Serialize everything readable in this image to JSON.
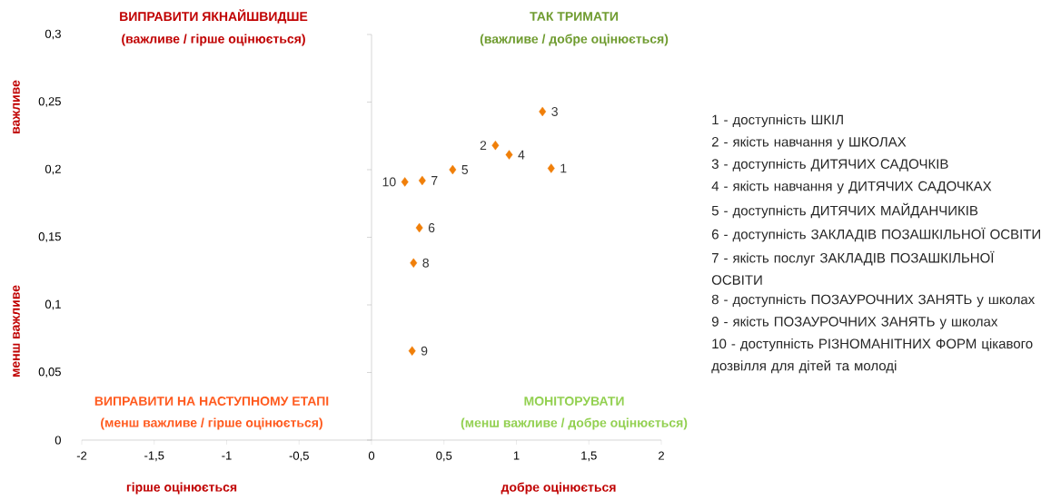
{
  "chart_data": {
    "type": "scatter",
    "marker": "diamond",
    "color": "#f07f09",
    "x": [
      1.24,
      0.855,
      1.18,
      0.95,
      0.56,
      0.33,
      0.35,
      0.29,
      0.28,
      0.23
    ],
    "values": [
      0.201,
      0.218,
      0.243,
      0.211,
      0.2,
      0.157,
      0.192,
      0.131,
      0.066,
      0.191
    ],
    "xlim": [
      -2,
      2
    ],
    "ylim": [
      0,
      0.3
    ],
    "xticks": [
      -2,
      {
        "value": -1.5,
        "label": "-1,5"
      },
      -1,
      {
        "value": -0.5,
        "label": "-0,5"
      },
      0,
      {
        "value": 0.5,
        "label": "0,5"
      },
      1,
      {
        "value": 1.5,
        "label": "1,5"
      },
      2
    ],
    "yticks": [
      0,
      {
        "value": 0.05,
        "label": "0,05"
      },
      {
        "value": 0.1,
        "label": "0,1"
      },
      {
        "value": 0.15,
        "label": "0,15"
      },
      {
        "value": 0.2,
        "label": "0,2"
      },
      {
        "value": 0.25,
        "label": "0,25"
      },
      {
        "value": 0.3,
        "label": "0,3"
      }
    ],
    "annotations": [
      "ВИПРАВИТИ ЯКНАЙШВИДШЕ",
      "(важливе / гірше оцінюється)",
      "ТАК ТРИМАТИ",
      "(важливе / добре оцінюється)",
      "ВИПРАВИТИ НА НАСТУПНОМУ ЕТАПІ",
      "(менш важливе / гірше оцінюється)",
      "МОНІТОРУВАТИ",
      "(менш важливе / добре оцінюється)",
      "гірше оцінюється",
      "добре оцінюється",
      "важливе",
      "менш важливе",
      "1 - доступність ШКІЛ",
      "2 - якість навчання у ШКОЛАХ",
      "3 - доступність ДИТЯЧИХ САДОЧКІВ",
      "4 - якість навчання у ДИТЯЧИХ САДОЧКАХ",
      "5 - доступність ДИТЯЧИХ МАЙДАНЧИКІВ",
      "6 - доступність ЗАКЛАДІВ ПОЗАШКІЛЬНОЇ ОСВІТИ",
      "7 - якість послуг ЗАКЛАДІВ ПОЗАШКІЛЬНОЇ ОСВІТИ",
      "8 - доступність ПОЗАУРОЧНИХ ЗАНЯТЬ у школах",
      "9 - якість ПОЗАУРОЧНИХ ЗАНЯТЬ у школах",
      "10 - доступність РІЗНОМАНІТНИХ ФОРМ цікавого дозвілля для дітей та молоді",
      {
        "text": "1",
        "x": 1.24,
        "y": 0.201
      },
      {
        "text": "2",
        "x": 0.855,
        "y": 0.218
      },
      {
        "text": "3",
        "x": 1.18,
        "y": 0.243
      },
      {
        "text": "4",
        "x": 0.95,
        "y": 0.211
      },
      {
        "text": "5",
        "x": 0.56,
        "y": 0.2
      },
      {
        "text": "6",
        "x": 0.33,
        "y": 0.157
      },
      {
        "text": "7",
        "x": 0.35,
        "y": 0.192
      },
      {
        "text": "8",
        "x": 0.29,
        "y": 0.131
      },
      {
        "text": "9",
        "x": 0.28,
        "y": 0.066
      },
      {
        "text": "10",
        "x": 0.23,
        "y": 0.191
      }
    ]
  }
}
